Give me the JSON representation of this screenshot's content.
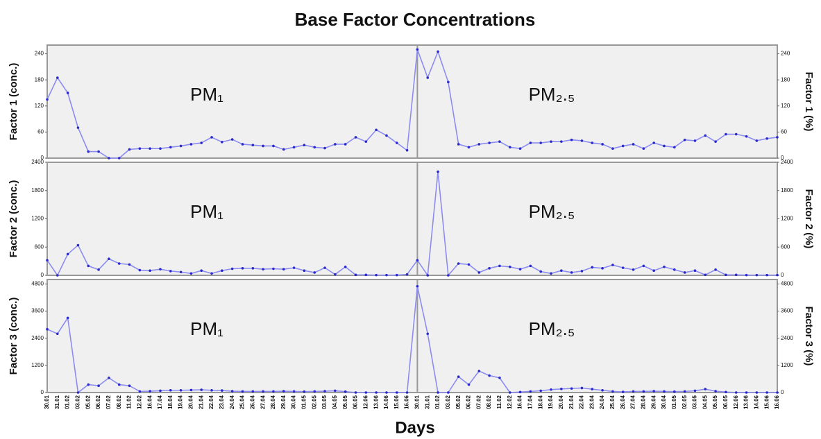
{
  "chart_data": {
    "type": "line",
    "title": "Base Factor Concentrations",
    "xlabel": "Days",
    "categories": [
      "30.01",
      "31.01",
      "01.02",
      "03.02",
      "05.02",
      "06.02",
      "07.02",
      "08.02",
      "11.02",
      "12.02",
      "16.04",
      "17.04",
      "18.04",
      "19.04",
      "20.04",
      "21.04",
      "22.04",
      "23.04",
      "24.04",
      "25.04",
      "26.04",
      "27.04",
      "28.04",
      "29.04",
      "30.04",
      "01.05",
      "02.05",
      "03.05",
      "04.05",
      "05.05",
      "06.05",
      "12.06",
      "13.06",
      "14.06",
      "15.06",
      "16.06",
      "30.01",
      "31.01",
      "01.02",
      "03.02",
      "05.02",
      "06.02",
      "07.02",
      "08.02",
      "11.02",
      "12.02",
      "16.04",
      "17.04",
      "18.04",
      "19.04",
      "20.04",
      "21.04",
      "22.04",
      "23.04",
      "24.04",
      "25.04",
      "26.04",
      "27.04",
      "28.04",
      "29.04",
      "30.04",
      "01.05",
      "02.05",
      "03.05",
      "04.05",
      "05.05",
      "06.05",
      "12.06",
      "13.06",
      "14.06",
      "15.06",
      "16.06"
    ],
    "annotations": [
      "PM₁",
      "PM₂.₅"
    ],
    "color": "#8c8cf0",
    "panels": [
      {
        "ylabel": "Factor 1 (conc.)",
        "y2label": "Factor 1 (%)",
        "ylim": [
          0,
          260
        ],
        "yticks": [
          0,
          60,
          120,
          180,
          240
        ],
        "y2lim": [
          0,
          260
        ],
        "y2ticks": [
          0,
          60,
          120,
          180,
          240
        ],
        "values": [
          135,
          185,
          150,
          70,
          15,
          15,
          0,
          0,
          20,
          22,
          22,
          22,
          25,
          28,
          32,
          35,
          48,
          37,
          43,
          32,
          30,
          28,
          28,
          20,
          25,
          30,
          25,
          23,
          32,
          32,
          48,
          38,
          65,
          52,
          35,
          18,
          250,
          185,
          245,
          175,
          32,
          25,
          32,
          35,
          38,
          25,
          22,
          35,
          35,
          38,
          38,
          42,
          40,
          35,
          32,
          22,
          28,
          32,
          22,
          35,
          28,
          25,
          42,
          40,
          52,
          38,
          55,
          55,
          50,
          40,
          45,
          48
        ]
      },
      {
        "ylabel": "Factor 2 (conc.)",
        "y2label": "Factor 2 (%)",
        "ylim": [
          0,
          2400
        ],
        "yticks": [
          0,
          600,
          1200,
          1800,
          2400
        ],
        "y2lim": [
          0,
          2400
        ],
        "y2ticks": [
          0,
          600,
          1200,
          1800,
          2400
        ],
        "values": [
          320,
          0,
          450,
          640,
          200,
          120,
          350,
          250,
          230,
          110,
          100,
          130,
          90,
          70,
          40,
          100,
          40,
          100,
          140,
          150,
          150,
          130,
          140,
          130,
          160,
          100,
          60,
          160,
          20,
          180,
          10,
          10,
          5,
          5,
          5,
          20,
          320,
          0,
          2200,
          0,
          250,
          230,
          60,
          150,
          200,
          180,
          130,
          200,
          80,
          40,
          100,
          60,
          90,
          170,
          150,
          220,
          160,
          120,
          200,
          100,
          180,
          120,
          60,
          100,
          10,
          120,
          10,
          10,
          5,
          5,
          5,
          5
        ]
      },
      {
        "ylabel": "Factor 3 (conc.)",
        "y2label": "Factor 3 (%)",
        "ylim": [
          0,
          5000
        ],
        "yticks": [
          0,
          1200,
          2400,
          3600,
          4800
        ],
        "y2lim": [
          0,
          5000
        ],
        "y2ticks": [
          0,
          1200,
          2400,
          3600,
          4800
        ],
        "values": [
          2800,
          2600,
          3300,
          0,
          350,
          300,
          650,
          350,
          300,
          50,
          60,
          80,
          100,
          100,
          110,
          120,
          100,
          90,
          60,
          50,
          50,
          50,
          50,
          60,
          50,
          40,
          50,
          60,
          80,
          40,
          0,
          0,
          0,
          0,
          0,
          0,
          4700,
          2600,
          0,
          0,
          700,
          350,
          950,
          750,
          650,
          0,
          20,
          50,
          80,
          130,
          160,
          180,
          200,
          150,
          100,
          50,
          30,
          50,
          50,
          60,
          50,
          40,
          50,
          80,
          150,
          60,
          20,
          0,
          0,
          0,
          0,
          0
        ]
      }
    ]
  }
}
